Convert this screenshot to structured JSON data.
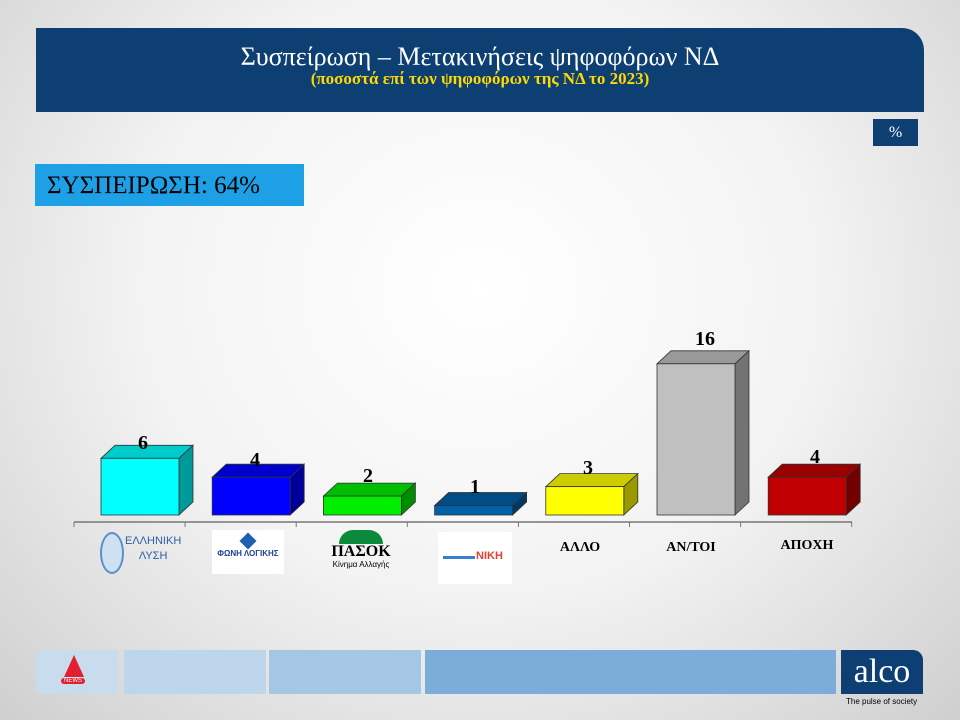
{
  "header": {
    "title": "Συσπείρωση – Μετακινήσεις ψηφοφόρων ΝΔ",
    "subtitle": "(ποσοστά επί των ψηφοφόρων της ΝΔ το 2023)"
  },
  "unit_badge": "%",
  "rally_label": "ΣΥΣΠΕΙΡΩΣΗ: 64%",
  "chart_data": {
    "type": "bar",
    "categories": [
      "ΕΛΛΗΝΙΚΗ ΛΥΣΗ",
      "ΦΩΝΗ ΛΟΓΙΚΗΣ",
      "ΠΑΣΟΚ",
      "ΝΙΚΗ",
      "ΑΛΛΟ",
      "ΑΝ/ΤΟΙ",
      "ΑΠΟΧΗ"
    ],
    "values": [
      6,
      4,
      2,
      1,
      3,
      16,
      4
    ],
    "colors": [
      "#00ffff",
      "#0000ff",
      "#00ee00",
      "#0060a8",
      "#ffff00",
      "#c0c0c0",
      "#c00000"
    ],
    "data_labels": true
  },
  "logos": {
    "elliniki_lysi": [
      "ΕΛΛΗΝΙΚΗ",
      "ΛΥΣΗ"
    ],
    "foni_logikis": "ΦΩΝΗ ΛΟΓΙΚΗΣ",
    "pasok": [
      "ΠΑΣΟΚ",
      "Κίνημα Αλλαγής"
    ],
    "niki": "ΝΙΚΗ",
    "alpha": "NEWS",
    "alco": "alco",
    "alco_tagline": "The pulse of society"
  }
}
